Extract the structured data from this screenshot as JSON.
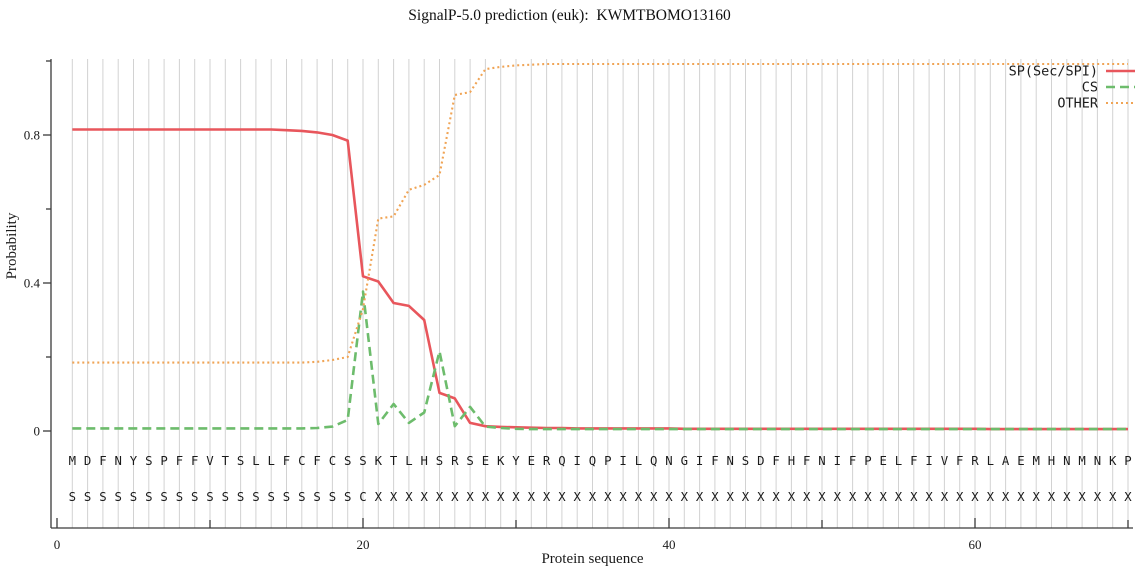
{
  "title": "SignalP-5.0 prediction (euk):  KWMTBOMO13160",
  "colors": {
    "sp_line": "#e8565c",
    "cs_line": "#6dbc6c",
    "other_line": "#f0a455",
    "grid": "#d2d2d2",
    "axis": "#3a3a3a",
    "text": "#1a1a1a"
  },
  "chart_data": {
    "type": "line",
    "title": "SignalP-5.0 prediction (euk):  KWMTBOMO13160",
    "xlabel": "Protein sequence",
    "ylabel": "Probability",
    "xlim": [
      0,
      70.5
    ],
    "ylim": [
      0,
      1.0
    ],
    "grid": "vertical gridline at every residue 1-70",
    "legend_position": "top-right",
    "x_ticks_major": [
      0,
      20,
      40,
      60
    ],
    "x_ticks_minor": [
      10,
      30,
      50,
      70
    ],
    "y_ticks_major": [
      0,
      0.4,
      0.8
    ],
    "y_ticks_minor": [
      0.2,
      0.6,
      1.0
    ],
    "n_residues": 70,
    "sequence": "MDFNYSPFFVTSLLFCFCSSKTLHSRSEKYERQIQPILQNGIFNSDFHFNIFPELFIVFRLAEMHNMNKP",
    "region_marks": "SSSSSSSSSSSSSSSSSSSCXXXXXXXXXXXXXXXXXXXXXXXXXXXXXXXXXXXXXXXXXXXXXXXXXX",
    "series": [
      {
        "name": "SP(Sec/SPI)",
        "style": "solid",
        "color": "#e8565c",
        "values": [
          0.815,
          0.815,
          0.815,
          0.815,
          0.815,
          0.815,
          0.815,
          0.815,
          0.815,
          0.815,
          0.815,
          0.815,
          0.815,
          0.815,
          0.813,
          0.811,
          0.807,
          0.8,
          0.785,
          0.418,
          0.404,
          0.346,
          0.338,
          0.3,
          0.103,
          0.088,
          0.022,
          0.013,
          0.011,
          0.01,
          0.009,
          0.008,
          0.008,
          0.007,
          0.007,
          0.007,
          0.007,
          0.007,
          0.007,
          0.007,
          0.006,
          0.006,
          0.006,
          0.006,
          0.006,
          0.006,
          0.006,
          0.006,
          0.006,
          0.006,
          0.006,
          0.006,
          0.006,
          0.006,
          0.006,
          0.006,
          0.006,
          0.006,
          0.006,
          0.006,
          0.005,
          0.005,
          0.005,
          0.005,
          0.005,
          0.005,
          0.005,
          0.005,
          0.005,
          0.005
        ]
      },
      {
        "name": "CS",
        "style": "dashed",
        "color": "#6dbc6c",
        "values": [
          0.007,
          0.007,
          0.007,
          0.007,
          0.007,
          0.007,
          0.007,
          0.007,
          0.007,
          0.007,
          0.007,
          0.007,
          0.007,
          0.007,
          0.007,
          0.007,
          0.008,
          0.012,
          0.03,
          0.377,
          0.019,
          0.073,
          0.022,
          0.05,
          0.215,
          0.013,
          0.065,
          0.012,
          0.008,
          0.006,
          0.005,
          0.005,
          0.005,
          0.005,
          0.005,
          0.005,
          0.005,
          0.005,
          0.005,
          0.005,
          0.005,
          0.005,
          0.005,
          0.005,
          0.005,
          0.005,
          0.005,
          0.005,
          0.005,
          0.005,
          0.005,
          0.005,
          0.005,
          0.005,
          0.005,
          0.005,
          0.005,
          0.005,
          0.005,
          0.005,
          0.005,
          0.005,
          0.005,
          0.005,
          0.005,
          0.005,
          0.005,
          0.005,
          0.005,
          0.005
        ]
      },
      {
        "name": "OTHER",
        "style": "dotted",
        "color": "#f0a455",
        "values": [
          0.185,
          0.185,
          0.185,
          0.185,
          0.185,
          0.185,
          0.185,
          0.185,
          0.185,
          0.185,
          0.185,
          0.185,
          0.185,
          0.185,
          0.185,
          0.185,
          0.187,
          0.192,
          0.2,
          0.33,
          0.574,
          0.58,
          0.652,
          0.665,
          0.692,
          0.908,
          0.916,
          0.978,
          0.984,
          0.988,
          0.99,
          0.992,
          0.992,
          0.992,
          0.992,
          0.992,
          0.992,
          0.992,
          0.992,
          0.992,
          0.992,
          0.992,
          0.992,
          0.992,
          0.992,
          0.992,
          0.992,
          0.992,
          0.992,
          0.992,
          0.992,
          0.992,
          0.992,
          0.992,
          0.992,
          0.992,
          0.992,
          0.992,
          0.992,
          0.992,
          0.992,
          0.992,
          0.992,
          0.992,
          0.992,
          0.992,
          0.992,
          0.992,
          0.992,
          0.992
        ]
      }
    ]
  }
}
